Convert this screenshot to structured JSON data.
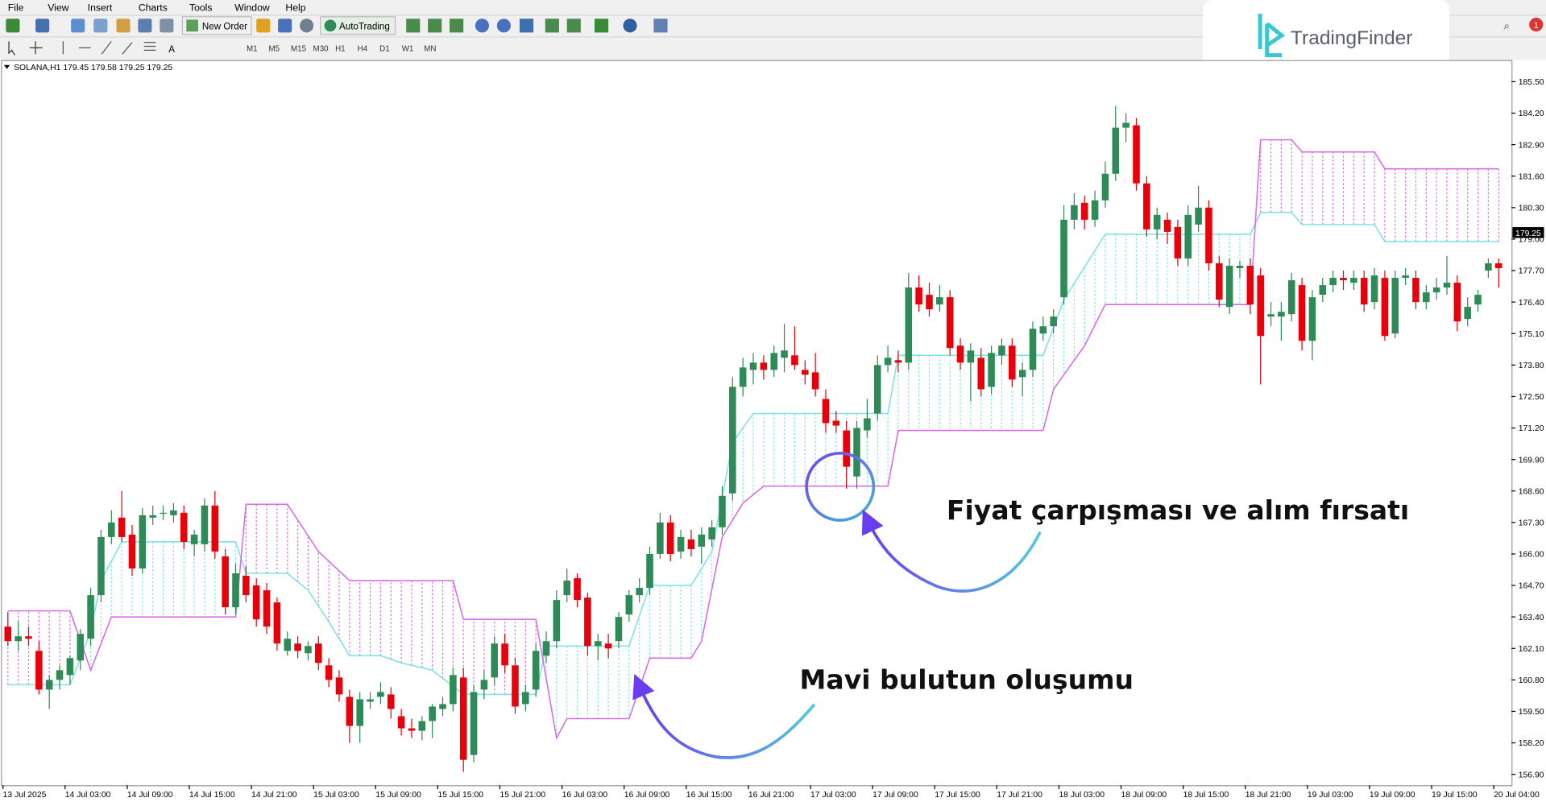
{
  "menu": [
    "File",
    "View",
    "Insert",
    "Charts",
    "Tools",
    "Window",
    "Help"
  ],
  "toolbar": {
    "new_order": "New Order",
    "auto_trading": "AutoTrading"
  },
  "timeframes": [
    "M1",
    "M5",
    "M15",
    "M30",
    "H1",
    "H4",
    "D1",
    "W1",
    "MN"
  ],
  "brand": "TradingFinder",
  "notifications": "1",
  "chart_data": {
    "type": "candlestick",
    "symbol_info": "SOLANA,H1  179.45 179.58 179.25 179.25",
    "up_color": "#2e8b57",
    "down_color": "#e8000b",
    "span_a_color": "#7fe3e6",
    "span_b_color": "#d86ee6",
    "ylim": [
      156.45,
      186.35
    ],
    "yticks": [
      {
        "value": 185.5,
        "label": "185.50"
      },
      {
        "value": 184.2,
        "label": "184.20"
      },
      {
        "value": 182.9,
        "label": "182.90"
      },
      {
        "value": 181.6,
        "label": "181.60"
      },
      {
        "value": 180.3,
        "label": "180.30"
      },
      {
        "value": 179,
        "label": "179.00"
      },
      {
        "value": 177.7,
        "label": "177.70"
      },
      {
        "value": 176.4,
        "label": "176.40"
      },
      {
        "value": 175.1,
        "label": "175.10"
      },
      {
        "value": 173.8,
        "label": "173.80"
      },
      {
        "value": 172.5,
        "label": "172.50"
      },
      {
        "value": 171.2,
        "label": "171.20"
      },
      {
        "value": 169.9,
        "label": "169.90"
      },
      {
        "value": 168.6,
        "label": "168.60"
      },
      {
        "value": 167.3,
        "label": "167.30"
      },
      {
        "value": 166,
        "label": "166.00"
      },
      {
        "value": 164.7,
        "label": "164.70"
      },
      {
        "value": 163.4,
        "label": "163.40"
      },
      {
        "value": 162.1,
        "label": "162.10"
      },
      {
        "value": 160.8,
        "label": "160.80"
      },
      {
        "value": 159.5,
        "label": "159.50"
      },
      {
        "value": 158.2,
        "label": "158.20"
      },
      {
        "value": 156.9,
        "label": "156.90"
      }
    ],
    "current_price": {
      "value": 179.25,
      "label": "179.25"
    },
    "xlabels": [
      "13 Jul 2025",
      "14 Jul 03:00",
      "14 Jul 09:00",
      "14 Jul 15:00",
      "14 Jul 21:00",
      "15 Jul 03:00",
      "15 Jul 09:00",
      "15 Jul 15:00",
      "15 Jul 21:00",
      "16 Jul 03:00",
      "16 Jul 09:00",
      "16 Jul 15:00",
      "16 Jul 21:00",
      "17 Jul 03:00",
      "17 Jul 09:00",
      "17 Jul 15:00",
      "17 Jul 21:00",
      "18 Jul 03:00",
      "18 Jul 09:00",
      "18 Jul 15:00",
      "18 Jul 21:00",
      "19 Jul 03:00",
      "19 Jul 09:00",
      "19 Jul 15:00",
      "20 Jul 04:00"
    ],
    "candles": [
      [
        163.0,
        163.6,
        162.2,
        162.4
      ],
      [
        162.4,
        163.2,
        162.0,
        162.6
      ],
      [
        162.6,
        163.0,
        162.2,
        162.5
      ],
      [
        162.0,
        162.4,
        160.2,
        160.4
      ],
      [
        160.4,
        161.0,
        159.6,
        160.8
      ],
      [
        160.8,
        161.4,
        160.4,
        161.2
      ],
      [
        161.0,
        161.8,
        160.6,
        161.7
      ],
      [
        161.6,
        162.9,
        161.2,
        162.7
      ],
      [
        162.5,
        164.6,
        162.2,
        164.3
      ],
      [
        164.3,
        167.0,
        164.0,
        166.7
      ],
      [
        166.7,
        167.8,
        166.4,
        167.3
      ],
      [
        167.5,
        168.6,
        166.5,
        166.7
      ],
      [
        166.8,
        167.2,
        165.1,
        165.4
      ],
      [
        165.4,
        167.9,
        165.2,
        167.6
      ],
      [
        167.5,
        168.0,
        167.2,
        167.6
      ],
      [
        167.7,
        168.0,
        167.4,
        167.7
      ],
      [
        167.6,
        168.1,
        167.3,
        167.8
      ],
      [
        167.7,
        168.0,
        166.2,
        166.5
      ],
      [
        166.4,
        167.0,
        165.9,
        166.8
      ],
      [
        166.4,
        168.3,
        166.1,
        168.0
      ],
      [
        168.0,
        168.6,
        165.8,
        166.1
      ],
      [
        165.9,
        166.2,
        163.5,
        163.8
      ],
      [
        163.8,
        165.6,
        163.5,
        165.2
      ],
      [
        165.1,
        165.5,
        164.0,
        164.3
      ],
      [
        164.7,
        165.0,
        163.0,
        163.3
      ],
      [
        164.5,
        164.8,
        162.7,
        163.0
      ],
      [
        164.0,
        164.2,
        162.0,
        162.3
      ],
      [
        162.0,
        162.8,
        161.8,
        162.5
      ],
      [
        162.3,
        162.6,
        161.7,
        162.0
      ],
      [
        161.9,
        162.4,
        161.6,
        162.2
      ],
      [
        162.3,
        162.6,
        161.2,
        161.5
      ],
      [
        161.4,
        161.7,
        160.5,
        160.8
      ],
      [
        160.9,
        161.2,
        159.9,
        160.2
      ],
      [
        160.1,
        160.4,
        158.2,
        158.9
      ],
      [
        158.9,
        160.3,
        158.2,
        160.0
      ],
      [
        159.9,
        160.3,
        159.6,
        160.0
      ],
      [
        160.1,
        160.7,
        159.8,
        160.3
      ],
      [
        160.2,
        160.5,
        159.2,
        159.6
      ],
      [
        159.3,
        159.6,
        158.5,
        158.8
      ],
      [
        158.8,
        159.2,
        158.4,
        158.7
      ],
      [
        158.7,
        159.3,
        158.3,
        159.1
      ],
      [
        159.1,
        159.8,
        158.4,
        159.7
      ],
      [
        159.6,
        160.1,
        159.3,
        159.8
      ],
      [
        159.8,
        161.3,
        159.5,
        161.0
      ],
      [
        160.9,
        161.3,
        157.0,
        157.5
      ],
      [
        157.7,
        160.6,
        157.4,
        160.3
      ],
      [
        160.4,
        161.2,
        160.0,
        160.8
      ],
      [
        160.9,
        162.6,
        160.6,
        162.3
      ],
      [
        162.3,
        162.7,
        161.1,
        161.4
      ],
      [
        161.4,
        161.7,
        159.4,
        159.7
      ],
      [
        159.8,
        160.6,
        159.5,
        160.3
      ],
      [
        160.4,
        162.3,
        160.1,
        162.0
      ],
      [
        161.8,
        162.8,
        161.5,
        162.4
      ],
      [
        162.4,
        164.5,
        162.1,
        164.1
      ],
      [
        164.3,
        165.4,
        164.0,
        164.9
      ],
      [
        165.0,
        165.2,
        163.8,
        164.1
      ],
      [
        164.2,
        164.4,
        161.8,
        162.2
      ],
      [
        162.2,
        162.7,
        161.6,
        162.4
      ],
      [
        162.3,
        162.7,
        161.7,
        162.1
      ],
      [
        162.4,
        163.6,
        162.1,
        163.4
      ],
      [
        163.5,
        164.5,
        163.2,
        164.3
      ],
      [
        164.3,
        165.0,
        164.0,
        164.6
      ],
      [
        164.6,
        166.3,
        164.3,
        166.0
      ],
      [
        166.0,
        167.7,
        165.8,
        167.3
      ],
      [
        167.3,
        167.6,
        165.7,
        166.0
      ],
      [
        166.1,
        167.0,
        165.8,
        166.7
      ],
      [
        166.6,
        167.0,
        165.9,
        166.2
      ],
      [
        166.3,
        167.1,
        165.6,
        166.8
      ],
      [
        166.6,
        167.4,
        166.3,
        167.1
      ],
      [
        167.1,
        168.8,
        166.8,
        168.4
      ],
      [
        168.5,
        173.3,
        168.2,
        172.9
      ],
      [
        172.9,
        174.1,
        172.5,
        173.7
      ],
      [
        173.6,
        174.3,
        173.0,
        173.9
      ],
      [
        173.9,
        174.2,
        173.2,
        173.6
      ],
      [
        173.6,
        174.6,
        173.3,
        174.3
      ],
      [
        174.1,
        175.5,
        173.5,
        174.4
      ],
      [
        174.2,
        175.4,
        173.6,
        173.8
      ],
      [
        173.6,
        174.0,
        173.0,
        173.4
      ],
      [
        173.5,
        174.3,
        172.5,
        172.8
      ],
      [
        172.4,
        172.8,
        171.0,
        171.4
      ],
      [
        171.5,
        171.9,
        171.0,
        171.3
      ],
      [
        171.1,
        171.5,
        168.7,
        169.6
      ],
      [
        169.2,
        171.5,
        168.7,
        171.2
      ],
      [
        171.1,
        172.4,
        170.8,
        171.6
      ],
      [
        171.8,
        174.2,
        171.5,
        173.8
      ],
      [
        173.8,
        174.6,
        173.5,
        174.1
      ],
      [
        174.0,
        174.4,
        173.5,
        173.9
      ],
      [
        173.9,
        177.6,
        173.6,
        177.0
      ],
      [
        177.0,
        177.5,
        176.0,
        176.3
      ],
      [
        176.7,
        177.2,
        175.8,
        176.1
      ],
      [
        176.3,
        177.1,
        176.0,
        176.6
      ],
      [
        176.6,
        176.9,
        174.2,
        174.5
      ],
      [
        174.6,
        174.9,
        173.6,
        173.9
      ],
      [
        173.9,
        174.7,
        172.3,
        174.4
      ],
      [
        174.1,
        174.5,
        172.5,
        172.8
      ],
      [
        172.9,
        174.6,
        172.6,
        174.3
      ],
      [
        174.2,
        174.9,
        173.8,
        174.6
      ],
      [
        174.6,
        174.9,
        172.9,
        173.2
      ],
      [
        173.3,
        173.9,
        172.5,
        173.6
      ],
      [
        173.6,
        175.6,
        173.3,
        175.3
      ],
      [
        175.1,
        175.8,
        174.8,
        175.4
      ],
      [
        175.4,
        176.1,
        175.1,
        175.8
      ],
      [
        176.6,
        180.4,
        176.3,
        179.8
      ],
      [
        179.8,
        180.9,
        179.4,
        180.4
      ],
      [
        180.5,
        180.8,
        179.4,
        179.8
      ],
      [
        179.8,
        181.0,
        179.5,
        180.6
      ],
      [
        180.6,
        182.2,
        180.3,
        181.7
      ],
      [
        181.7,
        184.5,
        181.4,
        183.6
      ],
      [
        183.6,
        184.2,
        183.0,
        183.8
      ],
      [
        183.7,
        184.0,
        181.0,
        181.3
      ],
      [
        181.3,
        181.6,
        179.1,
        179.4
      ],
      [
        179.4,
        180.3,
        179.0,
        180.0
      ],
      [
        179.8,
        180.1,
        178.8,
        179.3
      ],
      [
        179.5,
        179.8,
        177.9,
        178.2
      ],
      [
        178.2,
        180.4,
        177.9,
        180.0
      ],
      [
        179.6,
        181.2,
        179.3,
        180.3
      ],
      [
        180.3,
        180.6,
        177.7,
        178.0
      ],
      [
        178.0,
        178.3,
        176.2,
        176.5
      ],
      [
        176.2,
        178.2,
        175.9,
        177.9
      ],
      [
        177.8,
        178.1,
        177.4,
        177.9
      ],
      [
        177.9,
        178.2,
        175.9,
        176.3
      ],
      [
        177.5,
        177.8,
        173.0,
        175.0
      ],
      [
        175.8,
        176.4,
        175.4,
        175.9
      ],
      [
        175.8,
        176.4,
        174.8,
        176.0
      ],
      [
        175.9,
        177.6,
        175.6,
        177.3
      ],
      [
        177.1,
        177.4,
        174.4,
        174.8
      ],
      [
        174.8,
        176.9,
        174.0,
        176.6
      ],
      [
        176.7,
        177.4,
        176.4,
        177.1
      ],
      [
        177.1,
        177.7,
        176.8,
        177.4
      ],
      [
        177.4,
        177.7,
        176.9,
        177.3
      ],
      [
        177.2,
        177.7,
        176.9,
        177.4
      ],
      [
        177.4,
        177.7,
        176.0,
        176.3
      ],
      [
        176.4,
        177.8,
        176.1,
        177.5
      ],
      [
        177.4,
        177.7,
        174.8,
        175.0
      ],
      [
        175.1,
        177.7,
        174.9,
        177.4
      ],
      [
        177.4,
        177.8,
        177.1,
        177.5
      ],
      [
        177.4,
        177.7,
        176.1,
        176.4
      ],
      [
        176.4,
        177.1,
        176.1,
        176.8
      ],
      [
        176.8,
        177.4,
        176.5,
        177.0
      ],
      [
        177.0,
        178.3,
        176.7,
        177.2
      ],
      [
        177.2,
        177.5,
        175.2,
        175.6
      ],
      [
        175.7,
        176.6,
        175.4,
        176.2
      ],
      [
        176.3,
        176.9,
        176.0,
        176.7
      ],
      [
        177.7,
        178.2,
        177.4,
        178.0
      ],
      [
        178.0,
        178.2,
        177.0,
        177.8
      ]
    ],
    "span_a": {
      "x": [
        0,
        6,
        8,
        9,
        11,
        22,
        23,
        27,
        29,
        31,
        33,
        36,
        38,
        41,
        44,
        51,
        52,
        60,
        62,
        66,
        68,
        70,
        72,
        85,
        86,
        100,
        102,
        106,
        120,
        121,
        124,
        125,
        132,
        133,
        144
      ],
      "values": [
        160.6,
        160.6,
        162.8,
        164.9,
        166.5,
        166.5,
        165.2,
        165.2,
        164.5,
        163.2,
        161.8,
        161.8,
        161.5,
        161.2,
        160.2,
        160.2,
        162.2,
        162.2,
        164.7,
        164.7,
        166.1,
        170.6,
        171.8,
        171.8,
        174.2,
        174.2,
        176.5,
        179.2,
        179.2,
        180.1,
        180.1,
        179.6,
        179.6,
        178.9,
        178.9
      ]
    },
    "span_b": {
      "x": [
        0,
        6,
        8,
        10,
        22,
        23,
        27,
        30,
        33,
        43,
        44,
        51,
        53,
        54,
        60,
        62,
        66,
        67,
        69,
        71,
        73,
        85,
        86,
        100,
        101,
        104,
        106,
        120,
        121,
        124,
        125,
        132,
        133,
        144
      ],
      "values": [
        163.65,
        163.65,
        161.2,
        163.4,
        163.4,
        168.05,
        168.05,
        166.1,
        164.9,
        164.9,
        163.3,
        163.3,
        158.4,
        159.2,
        159.2,
        161.7,
        161.7,
        162.4,
        166.7,
        168.1,
        168.8,
        168.8,
        171.1,
        171.1,
        172.8,
        174.6,
        176.3,
        176.3,
        183.1,
        183.1,
        182.6,
        182.6,
        181.9,
        181.9
      ]
    },
    "annotations": [
      "Fiyat çarpışması ve alım fırsatı",
      "Mavi bulutun oluşumu"
    ]
  }
}
